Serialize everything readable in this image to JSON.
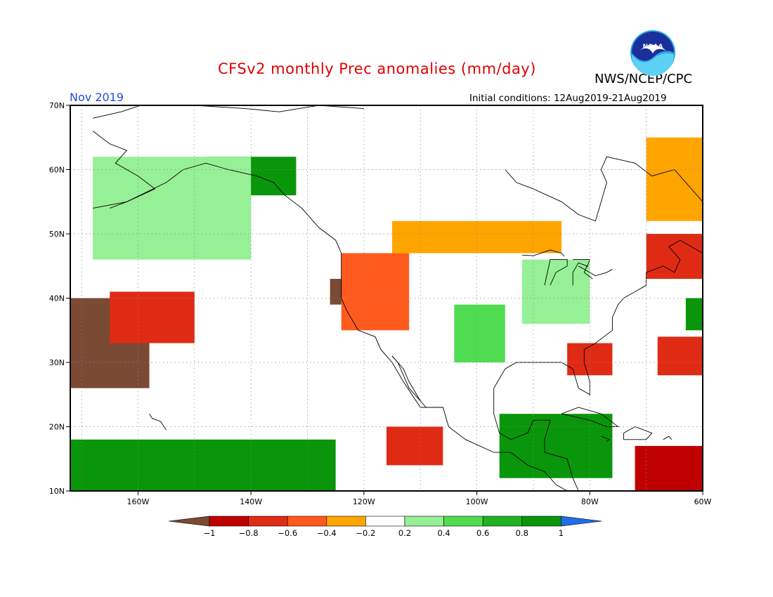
{
  "header": {
    "title": "CFSv2 monthly Prec anomalies (mm/day)",
    "agency": "NWS/NCEP/CPC",
    "logo_text": "NOAA",
    "month": "Nov 2019",
    "initial_conditions": "Initial conditions: 12Aug2019-21Aug2019"
  },
  "map": {
    "lon_range": [
      -172,
      -60
    ],
    "lat_range": [
      10,
      70
    ],
    "lat_ticks": [
      {
        "v": 70,
        "label": "70N"
      },
      {
        "v": 60,
        "label": "60N"
      },
      {
        "v": 50,
        "label": "50N"
      },
      {
        "v": 40,
        "label": "40N"
      },
      {
        "v": 30,
        "label": "30N"
      },
      {
        "v": 20,
        "label": "20N"
      },
      {
        "v": 10,
        "label": "10N"
      }
    ],
    "lon_ticks": [
      {
        "v": -160,
        "label": "160W"
      },
      {
        "v": -140,
        "label": "140W"
      },
      {
        "v": -120,
        "label": "120W"
      },
      {
        "v": -100,
        "label": "100W"
      },
      {
        "v": -80,
        "label": "80W"
      },
      {
        "v": -60,
        "label": "60W"
      }
    ],
    "grid": true
  },
  "colorbar": {
    "labels": [
      "−1",
      "−0.8",
      "−0.6",
      "−0.4",
      "−0.2",
      "0.2",
      "0.4",
      "0.6",
      "0.8",
      "1"
    ],
    "colors": [
      "#7a4a35",
      "#c00000",
      "#e02b14",
      "#ff5a1e",
      "#ffa500",
      "#ffffff",
      "#96f096",
      "#50dc50",
      "#1fb41f",
      "#0a960a",
      "#1e6ee6"
    ]
  },
  "chart_data": {
    "type": "heatmap",
    "title": "CFSv2 monthly Prec anomalies (mm/day)",
    "units": "mm/day",
    "month": "Nov 2019",
    "levels": [
      -1,
      -0.8,
      -0.6,
      -0.4,
      -0.2,
      0.2,
      0.4,
      0.6,
      0.8,
      1
    ],
    "anomaly_regions": [
      {
        "region": "Central North Pacific (near 170W 30N)",
        "lon": [
          -172,
          -158
        ],
        "lat": [
          26,
          40
        ],
        "value": -1.0
      },
      {
        "region": "North Pacific band (150-165W, 35-41N)",
        "lon": [
          -165,
          -150
        ],
        "lat": [
          33,
          41
        ],
        "value": -0.7
      },
      {
        "region": "Northern California coast",
        "lon": [
          -126,
          -121
        ],
        "lat": [
          39,
          43
        ],
        "value": -1.0
      },
      {
        "region": "Pacific Northwest / Great Basin",
        "lon": [
          -124,
          -112
        ],
        "lat": [
          35,
          47
        ],
        "value": -0.5
      },
      {
        "region": "Southern Canada / Northern Plains",
        "lon": [
          -115,
          -85
        ],
        "lat": [
          47,
          52
        ],
        "value": -0.3
      },
      {
        "region": "Eastern Canada / Maritimes",
        "lon": [
          -70,
          -60
        ],
        "lat": [
          43,
          50
        ],
        "value": -0.7
      },
      {
        "region": "Labrador Sea",
        "lon": [
          -70,
          -60
        ],
        "lat": [
          52,
          65
        ],
        "value": -0.3
      },
      {
        "region": "Southeast US / Florida",
        "lon": [
          -84,
          -76
        ],
        "lat": [
          28,
          33
        ],
        "value": -0.6
      },
      {
        "region": "Western Atlantic subtropics",
        "lon": [
          -68,
          -60
        ],
        "lat": [
          28,
          34
        ],
        "value": -0.7
      },
      {
        "region": "Off Mexico Pacific coast",
        "lon": [
          -116,
          -106
        ],
        "lat": [
          14,
          20
        ],
        "value": -0.7
      },
      {
        "region": "Southern Caribbean / Venezuela",
        "lon": [
          -72,
          -60
        ],
        "lat": [
          10,
          17
        ],
        "value": -0.9
      },
      {
        "region": "Gulf of Alaska coast",
        "lon": [
          -148,
          -132
        ],
        "lat": [
          56,
          62
        ],
        "value": 0.9
      },
      {
        "region": "Alaska / NE Pacific",
        "lon": [
          -168,
          -140
        ],
        "lat": [
          46,
          62
        ],
        "value": 0.4
      },
      {
        "region": "Southern Plains (Texas/Oklahoma)",
        "lon": [
          -104,
          -95
        ],
        "lat": [
          30,
          39
        ],
        "value": 0.6
      },
      {
        "region": "Ohio Valley / Great Lakes",
        "lon": [
          -92,
          -80
        ],
        "lat": [
          36,
          46
        ],
        "value": 0.3
      },
      {
        "region": "Tropical East Pacific (south of Hawaii)",
        "lon": [
          -172,
          -125
        ],
        "lat": [
          10,
          18
        ],
        "value": 1.0
      },
      {
        "region": "Western Caribbean / Gulf of Honduras",
        "lon": [
          -96,
          -76
        ],
        "lat": [
          12,
          22
        ],
        "value": 1.0
      },
      {
        "region": "Central Atlantic (near 60W 38N)",
        "lon": [
          -63,
          -60
        ],
        "lat": [
          35,
          40
        ],
        "value": 1.0
      }
    ]
  }
}
